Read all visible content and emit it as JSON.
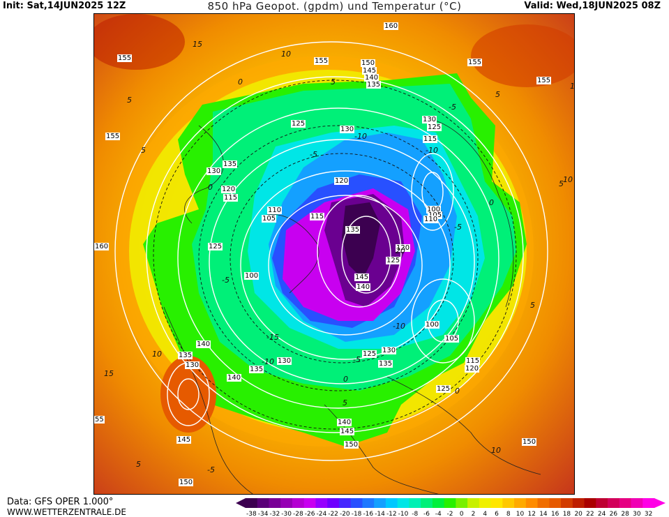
{
  "header": {
    "init": "Init: Sat,14JUN2025 12Z",
    "title": "850 hPa Geopot. (gpdm) und Temperatur (°C)",
    "valid": "Valid: Wed,18JUN2025 08Z"
  },
  "footer": {
    "data_source": "Data: GFS OPER 1.000°",
    "site": "WWW.WETTERZENTRALE.DE"
  },
  "map": {
    "geopotential_labels": [
      {
        "id": "gp-160-top",
        "text": "160"
      },
      {
        "id": "gp-155-nw",
        "text": "155"
      },
      {
        "id": "gp-155-n",
        "text": "155"
      },
      {
        "id": "gp-150-n",
        "text": "150"
      },
      {
        "id": "gp-145-n",
        "text": "145"
      },
      {
        "id": "gp-140-n",
        "text": "140"
      },
      {
        "id": "gp-135-n",
        "text": "135"
      },
      {
        "id": "gp-155-ne",
        "text": "155"
      },
      {
        "id": "gp-155-e",
        "text": "155"
      },
      {
        "id": "gp-155-w",
        "text": "155"
      },
      {
        "id": "gp-125-n1",
        "text": "125"
      },
      {
        "id": "gp-130-n",
        "text": "130"
      },
      {
        "id": "gp-130-ne",
        "text": "130"
      },
      {
        "id": "gp-125-ne",
        "text": "125"
      },
      {
        "id": "gp-115-ne",
        "text": "115"
      },
      {
        "id": "gp-135-w",
        "text": "135"
      },
      {
        "id": "gp-130-w",
        "text": "130"
      },
      {
        "id": "gp-120-w",
        "text": "120"
      },
      {
        "id": "gp-115-w",
        "text": "115"
      },
      {
        "id": "gp-120-c",
        "text": "120"
      },
      {
        "id": "gp-110-w",
        "text": "110"
      },
      {
        "id": "gp-105-w",
        "text": "105"
      },
      {
        "id": "gp-115-c",
        "text": "115"
      },
      {
        "id": "gp-100-e1",
        "text": "100"
      },
      {
        "id": "gp-105-e",
        "text": "105"
      },
      {
        "id": "gp-110-e",
        "text": "110"
      },
      {
        "id": "gp-160-w",
        "text": "160"
      },
      {
        "id": "gp-125-w",
        "text": "125"
      },
      {
        "id": "gp-135-c",
        "text": "135"
      },
      {
        "id": "gp-120-c2",
        "text": "120"
      },
      {
        "id": "gp-125-c",
        "text": "125"
      },
      {
        "id": "gp-145-c",
        "text": "145"
      },
      {
        "id": "gp-140-c",
        "text": "140"
      },
      {
        "id": "gp-100-w",
        "text": "100"
      },
      {
        "id": "gp-100-e2",
        "text": "100"
      },
      {
        "id": "gp-105-se",
        "text": "105"
      },
      {
        "id": "gp-140-sw",
        "text": "140"
      },
      {
        "id": "gp-135-sw",
        "text": "135"
      },
      {
        "id": "gp-130-sw",
        "text": "130"
      },
      {
        "id": "gp-125-s",
        "text": "125"
      },
      {
        "id": "gp-130-s",
        "text": "130"
      },
      {
        "id": "gp-135-s",
        "text": "135"
      },
      {
        "id": "gp-115-se",
        "text": "115"
      },
      {
        "id": "gp-120-se",
        "text": "120"
      },
      {
        "id": "gp-135-s2",
        "text": "135"
      },
      {
        "id": "gp-130-s2",
        "text": "130"
      },
      {
        "id": "gp-140-s",
        "text": "140"
      },
      {
        "id": "gp-125-se2",
        "text": "125"
      },
      {
        "id": "gp-140-s2",
        "text": "140"
      },
      {
        "id": "gp-145-s",
        "text": "145"
      },
      {
        "id": "gp-150-s",
        "text": "150"
      },
      {
        "id": "gp-145-sw",
        "text": "145"
      },
      {
        "id": "gp-150-sw",
        "text": "150"
      },
      {
        "id": "gp-150-se",
        "text": "150"
      },
      {
        "id": "gp-55-w",
        "text": "55"
      }
    ],
    "temperature_labels": [
      {
        "id": "t-15-nw",
        "text": "15"
      },
      {
        "id": "t-10-n",
        "text": "10"
      },
      {
        "id": "t-5-n",
        "text": "5"
      },
      {
        "id": "t-0-n",
        "text": "0"
      },
      {
        "id": "t-5-nw",
        "text": "5"
      },
      {
        "id": "t-5-w",
        "text": "5"
      },
      {
        "id": "t-0-w",
        "text": "0"
      },
      {
        "id": "t-m5-n",
        "text": "-5"
      },
      {
        "id": "t-m10-n",
        "text": "-10"
      },
      {
        "id": "t-m5-ne",
        "text": "-5"
      },
      {
        "id": "t-m10-ne",
        "text": "-10"
      },
      {
        "id": "t-5-ne",
        "text": "5"
      },
      {
        "id": "t-15-e",
        "text": "15"
      },
      {
        "id": "t-10-e",
        "text": "10"
      },
      {
        "id": "t-5-e",
        "text": "5"
      },
      {
        "id": "t-0-e",
        "text": "0"
      },
      {
        "id": "t-m5-e",
        "text": "-5"
      },
      {
        "id": "t-5-e2",
        "text": "5"
      },
      {
        "id": "t-m5-w",
        "text": "-5"
      },
      {
        "id": "t-m15-c",
        "text": "-15"
      },
      {
        "id": "t-m10-s",
        "text": "-10"
      },
      {
        "id": "t-m5-s",
        "text": "-5"
      },
      {
        "id": "t-m10-c",
        "text": "-10"
      },
      {
        "id": "t-20-c",
        "text": "20"
      },
      {
        "id": "t-10-sw",
        "text": "10"
      },
      {
        "id": "t-15-sw",
        "text": "15"
      },
      {
        "id": "t-0-s",
        "text": "0"
      },
      {
        "id": "t-0-se",
        "text": "0"
      },
      {
        "id": "t-5-s",
        "text": "5"
      },
      {
        "id": "t-m5-s2",
        "text": "-5"
      },
      {
        "id": "t-10-se",
        "text": "10"
      },
      {
        "id": "t-5-sw",
        "text": "5"
      }
    ]
  },
  "colorbar": {
    "ticks": [
      "-38",
      "-34",
      "-32",
      "-30",
      "-28",
      "-26",
      "-24",
      "-22",
      "-20",
      "-18",
      "-16",
      "-14",
      "-12",
      "-10",
      "-8",
      "-6",
      "-4",
      "-2",
      "0",
      "2",
      "4",
      "6",
      "8",
      "10",
      "12",
      "14",
      "16",
      "18",
      "20",
      "22",
      "24",
      "26",
      "28",
      "30",
      "32"
    ],
    "colors": [
      "#3c0050",
      "#5a0078",
      "#780096",
      "#9600b4",
      "#b400d2",
      "#c800f0",
      "#9600ff",
      "#6e00ff",
      "#4628ff",
      "#2850ff",
      "#1e78ff",
      "#14a0ff",
      "#00c8ff",
      "#00e6e6",
      "#00f0b4",
      "#00f078",
      "#00f03c",
      "#28f000",
      "#78f000",
      "#c8f000",
      "#f0f000",
      "#ffe600",
      "#ffc800",
      "#ffaa00",
      "#ff8c00",
      "#f06e00",
      "#e65a00",
      "#d23c00",
      "#be1e00",
      "#aa0000",
      "#be0032",
      "#d2005a",
      "#e60082",
      "#f000b4",
      "#ff00e6"
    ]
  }
}
